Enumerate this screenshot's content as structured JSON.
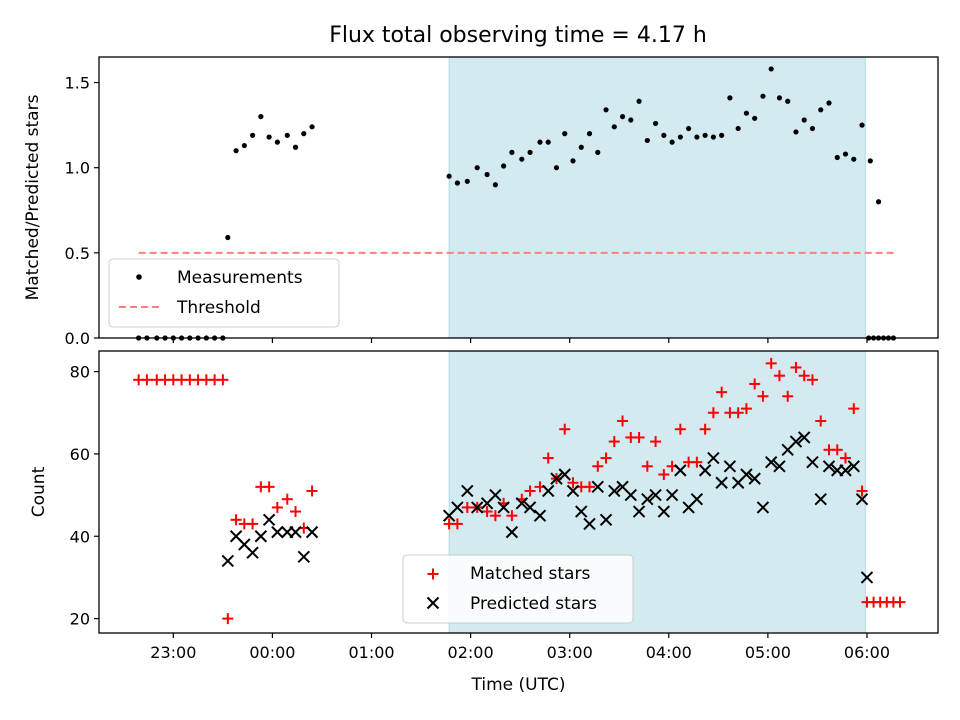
{
  "chart_data": [
    {
      "type": "scatter",
      "title": "Flux total observing time = 4.17 h",
      "xlabel": "",
      "ylabel": "Matched/Predicted stars",
      "ylim": [
        0,
        1.65
      ],
      "yticks": [
        "0.0",
        "0.5",
        "1.0",
        "1.5"
      ],
      "shaded_region": {
        "start": "01:47",
        "end": "05:59",
        "color": "#d3eaf0"
      },
      "threshold": {
        "name": "Threshold",
        "value": 0.5,
        "x_start": "22:39",
        "x_end": "06:18",
        "color": "#ff7f7f"
      },
      "legend": {
        "placement": "lower-left",
        "entries": [
          "Measurements",
          "Threshold"
        ]
      },
      "series": [
        {
          "name": "Measurements",
          "marker": "dot",
          "color": "#000000",
          "points": [
            [
              "22:39",
              0
            ],
            [
              "22:44",
              0
            ],
            [
              "22:50",
              0
            ],
            [
              "22:55",
              0
            ],
            [
              "23:00",
              0
            ],
            [
              "23:05",
              0
            ],
            [
              "23:10",
              0
            ],
            [
              "23:15",
              0
            ],
            [
              "23:20",
              0
            ],
            [
              "23:25",
              0
            ],
            [
              "23:30",
              0
            ],
            [
              "23:33",
              0.59
            ],
            [
              "23:38",
              1.1
            ],
            [
              "23:43",
              1.13
            ],
            [
              "23:48",
              1.19
            ],
            [
              "23:53",
              1.3
            ],
            [
              "23:58",
              1.18
            ],
            [
              "00:03",
              1.15
            ],
            [
              "00:09",
              1.19
            ],
            [
              "00:14",
              1.12
            ],
            [
              "00:19",
              1.2
            ],
            [
              "00:24",
              1.24
            ],
            [
              "01:47",
              0.95
            ],
            [
              "01:52",
              0.91
            ],
            [
              "01:58",
              0.92
            ],
            [
              "02:04",
              1.0
            ],
            [
              "02:10",
              0.96
            ],
            [
              "02:15",
              0.9
            ],
            [
              "02:20",
              1.01
            ],
            [
              "02:25",
              1.09
            ],
            [
              "02:31",
              1.05
            ],
            [
              "02:36",
              1.09
            ],
            [
              "02:42",
              1.15
            ],
            [
              "02:47",
              1.15
            ],
            [
              "02:52",
              1.0
            ],
            [
              "02:57",
              1.2
            ],
            [
              "03:02",
              1.04
            ],
            [
              "03:07",
              1.12
            ],
            [
              "03:12",
              1.2
            ],
            [
              "03:17",
              1.09
            ],
            [
              "03:22",
              1.34
            ],
            [
              "03:27",
              1.24
            ],
            [
              "03:32",
              1.3
            ],
            [
              "03:37",
              1.28
            ],
            [
              "03:42",
              1.39
            ],
            [
              "03:47",
              1.16
            ],
            [
              "03:52",
              1.26
            ],
            [
              "03:57",
              1.19
            ],
            [
              "04:02",
              1.15
            ],
            [
              "04:07",
              1.18
            ],
            [
              "04:12",
              1.23
            ],
            [
              "04:17",
              1.18
            ],
            [
              "04:22",
              1.19
            ],
            [
              "04:27",
              1.18
            ],
            [
              "04:32",
              1.19
            ],
            [
              "04:37",
              1.41
            ],
            [
              "04:42",
              1.23
            ],
            [
              "04:47",
              1.32
            ],
            [
              "04:52",
              1.29
            ],
            [
              "04:57",
              1.42
            ],
            [
              "05:02",
              1.58
            ],
            [
              "05:07",
              1.41
            ],
            [
              "05:12",
              1.39
            ],
            [
              "05:17",
              1.21
            ],
            [
              "05:22",
              1.28
            ],
            [
              "05:27",
              1.23
            ],
            [
              "05:32",
              1.34
            ],
            [
              "05:37",
              1.38
            ],
            [
              "05:42",
              1.06
            ],
            [
              "05:47",
              1.08
            ],
            [
              "05:52",
              1.05
            ],
            [
              "05:57",
              1.25
            ],
            [
              "06:02",
              1.04
            ],
            [
              "06:07",
              0.8
            ],
            [
              "06:01",
              0
            ],
            [
              "06:04",
              0
            ],
            [
              "06:07",
              0
            ],
            [
              "06:10",
              0
            ],
            [
              "06:13",
              0
            ],
            [
              "06:16",
              0
            ]
          ]
        }
      ]
    },
    {
      "type": "scatter",
      "title": "",
      "xlabel": "Time (UTC)",
      "ylabel": "Count",
      "ylim": [
        16.5,
        85
      ],
      "yticks": [
        "20",
        "40",
        "60",
        "80"
      ],
      "xlim": [
        "22:15",
        "06:43"
      ],
      "xticks": [
        "23:00",
        "00:00",
        "01:00",
        "02:00",
        "03:00",
        "04:00",
        "05:00",
        "06:00"
      ],
      "shaded_region": {
        "start": "01:47",
        "end": "05:59",
        "color": "#d3eaf0"
      },
      "legend": {
        "placement": "bottom-center",
        "entries": [
          "Matched stars",
          "Predicted stars"
        ]
      },
      "series": [
        {
          "name": "Matched stars",
          "marker": "plus",
          "color": "#ff0000",
          "points": [
            [
              "22:39",
              78
            ],
            [
              "22:44",
              78
            ],
            [
              "22:50",
              78
            ],
            [
              "22:55",
              78
            ],
            [
              "23:00",
              78
            ],
            [
              "23:05",
              78
            ],
            [
              "23:10",
              78
            ],
            [
              "23:15",
              78
            ],
            [
              "23:20",
              78
            ],
            [
              "23:25",
              78
            ],
            [
              "23:30",
              78
            ],
            [
              "23:33",
              20
            ],
            [
              "23:38",
              44
            ],
            [
              "23:43",
              43
            ],
            [
              "23:48",
              43
            ],
            [
              "23:53",
              52
            ],
            [
              "23:58",
              52
            ],
            [
              "00:03",
              47
            ],
            [
              "00:09",
              49
            ],
            [
              "00:14",
              46
            ],
            [
              "00:19",
              42
            ],
            [
              "00:24",
              51
            ],
            [
              "01:47",
              43
            ],
            [
              "01:52",
              43
            ],
            [
              "01:58",
              47
            ],
            [
              "02:04",
              47
            ],
            [
              "02:10",
              46
            ],
            [
              "02:15",
              45
            ],
            [
              "02:20",
              48
            ],
            [
              "02:25",
              45
            ],
            [
              "02:31",
              49
            ],
            [
              "02:36",
              51
            ],
            [
              "02:42",
              52
            ],
            [
              "02:47",
              59
            ],
            [
              "02:52",
              54
            ],
            [
              "02:57",
              66
            ],
            [
              "03:02",
              53
            ],
            [
              "03:07",
              52
            ],
            [
              "03:12",
              52
            ],
            [
              "03:17",
              57
            ],
            [
              "03:22",
              59
            ],
            [
              "03:27",
              63
            ],
            [
              "03:32",
              68
            ],
            [
              "03:37",
              64
            ],
            [
              "03:42",
              64
            ],
            [
              "03:47",
              57
            ],
            [
              "03:52",
              63
            ],
            [
              "03:57",
              55
            ],
            [
              "04:02",
              57
            ],
            [
              "04:07",
              66
            ],
            [
              "04:12",
              58
            ],
            [
              "04:17",
              58
            ],
            [
              "04:22",
              66
            ],
            [
              "04:27",
              70
            ],
            [
              "04:32",
              75
            ],
            [
              "04:37",
              70
            ],
            [
              "04:42",
              70
            ],
            [
              "04:47",
              71
            ],
            [
              "04:52",
              77
            ],
            [
              "04:57",
              74
            ],
            [
              "05:02",
              82
            ],
            [
              "05:07",
              79
            ],
            [
              "05:12",
              74
            ],
            [
              "05:17",
              81
            ],
            [
              "05:22",
              79
            ],
            [
              "05:27",
              78
            ],
            [
              "05:32",
              68
            ],
            [
              "05:37",
              61
            ],
            [
              "05:42",
              61
            ],
            [
              "05:47",
              59
            ],
            [
              "05:52",
              71
            ],
            [
              "05:57",
              51
            ],
            [
              "06:00",
              24
            ],
            [
              "06:04",
              24
            ],
            [
              "06:08",
              24
            ],
            [
              "06:12",
              24
            ],
            [
              "06:16",
              24
            ],
            [
              "06:20",
              24
            ]
          ]
        },
        {
          "name": "Predicted stars",
          "marker": "x",
          "color": "#000000",
          "points": [
            [
              "23:33",
              34
            ],
            [
              "23:38",
              40
            ],
            [
              "23:43",
              38
            ],
            [
              "23:48",
              36
            ],
            [
              "23:53",
              40
            ],
            [
              "23:58",
              44
            ],
            [
              "00:03",
              41
            ],
            [
              "00:09",
              41
            ],
            [
              "00:14",
              41
            ],
            [
              "00:19",
              35
            ],
            [
              "00:24",
              41
            ],
            [
              "01:47",
              45
            ],
            [
              "01:52",
              47
            ],
            [
              "01:58",
              51
            ],
            [
              "02:04",
              47
            ],
            [
              "02:10",
              48
            ],
            [
              "02:15",
              50
            ],
            [
              "02:20",
              47
            ],
            [
              "02:25",
              41
            ],
            [
              "02:31",
              48
            ],
            [
              "02:36",
              47
            ],
            [
              "02:42",
              45
            ],
            [
              "02:47",
              51
            ],
            [
              "02:52",
              54
            ],
            [
              "02:57",
              55
            ],
            [
              "03:02",
              51
            ],
            [
              "03:07",
              46
            ],
            [
              "03:12",
              43
            ],
            [
              "03:17",
              52
            ],
            [
              "03:22",
              44
            ],
            [
              "03:27",
              51
            ],
            [
              "03:32",
              52
            ],
            [
              "03:37",
              50
            ],
            [
              "03:42",
              46
            ],
            [
              "03:47",
              49
            ],
            [
              "03:52",
              50
            ],
            [
              "03:57",
              46
            ],
            [
              "04:02",
              50
            ],
            [
              "04:07",
              56
            ],
            [
              "04:12",
              47
            ],
            [
              "04:17",
              49
            ],
            [
              "04:22",
              56
            ],
            [
              "04:27",
              59
            ],
            [
              "04:32",
              53
            ],
            [
              "04:37",
              57
            ],
            [
              "04:42",
              53
            ],
            [
              "04:47",
              55
            ],
            [
              "04:52",
              54
            ],
            [
              "04:57",
              47
            ],
            [
              "05:02",
              58
            ],
            [
              "05:07",
              57
            ],
            [
              "05:12",
              61
            ],
            [
              "05:17",
              63
            ],
            [
              "05:22",
              64
            ],
            [
              "05:27",
              58
            ],
            [
              "05:32",
              49
            ],
            [
              "05:37",
              57
            ],
            [
              "05:42",
              56
            ],
            [
              "05:47",
              56
            ],
            [
              "05:52",
              57
            ],
            [
              "05:57",
              49
            ],
            [
              "06:00",
              30
            ]
          ]
        }
      ]
    }
  ]
}
